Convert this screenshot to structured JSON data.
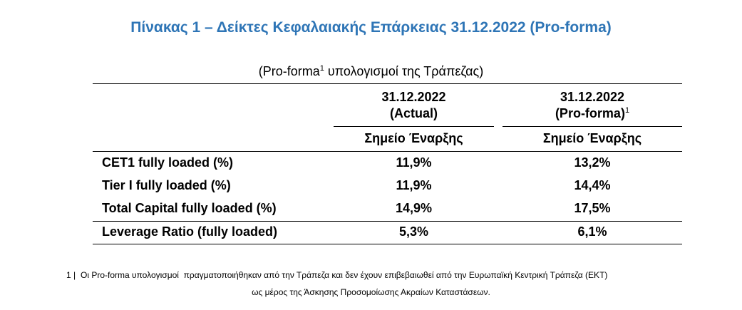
{
  "header": {
    "title": "Πίνακας 1 – Δείκτες Κεφαλαιακής Επάρκειας 31.12.2022 (Pro-forma)"
  },
  "table": {
    "caption": {
      "text": "(Pro-forma",
      "sup": "1",
      "rest": " υπολογισμοί της Τράπεζας)"
    },
    "columns": [
      {
        "date": "31.12.2022",
        "label": "(Actual)",
        "basis": "Σημείο Έναρξης"
      },
      {
        "date": "31.12.2022",
        "label": "(Pro-forma)",
        "sup": "1",
        "basis": "Σημείο Έναρξης"
      }
    ],
    "rows": [
      {
        "label": "CET1 fully loaded (%)",
        "values": [
          "11,9%",
          "13,2%"
        ]
      },
      {
        "label": "Tier I fully loaded (%)",
        "values": [
          "11,9%",
          "14,4%"
        ]
      },
      {
        "label": "Total Capital fully loaded (%)",
        "values": [
          "14,9%",
          "17,5%"
        ]
      },
      {
        "label": "Leverage Ratio (fully loaded)",
        "values": [
          "5,3%",
          "6,1%"
        ]
      }
    ]
  },
  "footnote": {
    "number": "1 |",
    "lines": [
      "Οι Pro-forma υπολογισμοί  πραγματοποιήθηκαν από την Τράπεζα και δεν έχουν επιβεβαιωθεί από την Ευρωπαϊκή Κεντρική Τράπεζα (ΕΚΤ)",
      "ως μέρος της Άσκησης Προσομοίωσης Ακραίων Καταστάσεων."
    ]
  }
}
